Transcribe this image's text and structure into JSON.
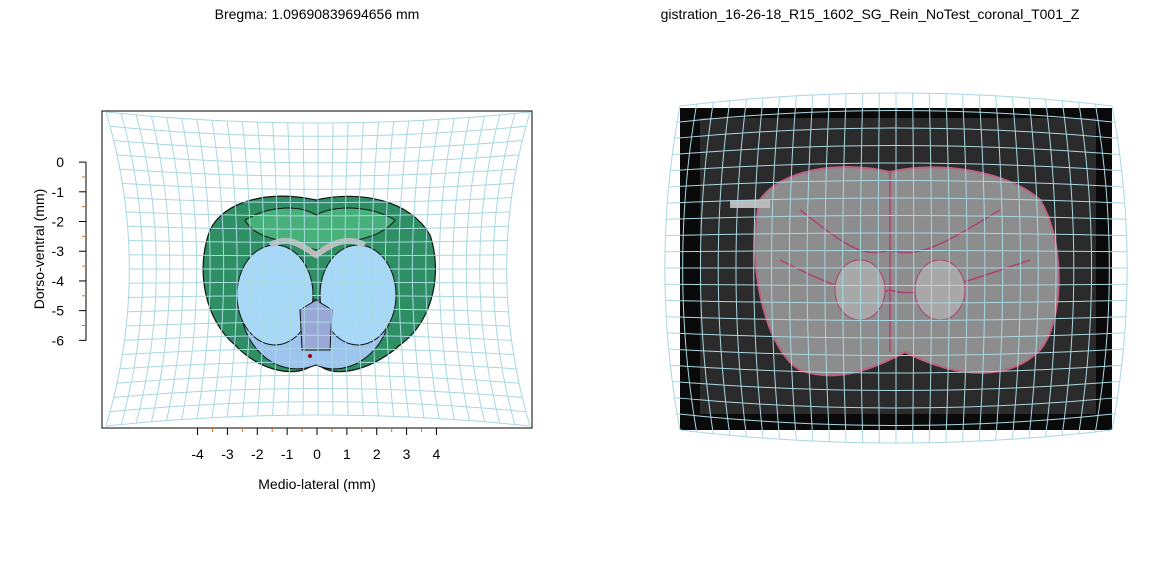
{
  "chart_data": [
    {
      "type": "atlas",
      "title": "Bregma: 1.09690839694656 mm",
      "xlabel": "Medio-lateral (mm)",
      "ylabel": "Dorso-ventral (mm)",
      "xlim": [
        -7.2,
        7.2
      ],
      "ylim": [
        -8.95,
        1.72
      ],
      "xticks": [
        -4,
        -3,
        -2,
        -1,
        0,
        1,
        2,
        3,
        4
      ],
      "yticks": [
        0,
        -1,
        -2,
        -3,
        -4,
        -5,
        -6
      ]
    },
    {
      "type": "image",
      "title": "gistration_16-26-18_R15_1602_SG_Rein_NoTest_coronal_T001_Z"
    }
  ]
}
